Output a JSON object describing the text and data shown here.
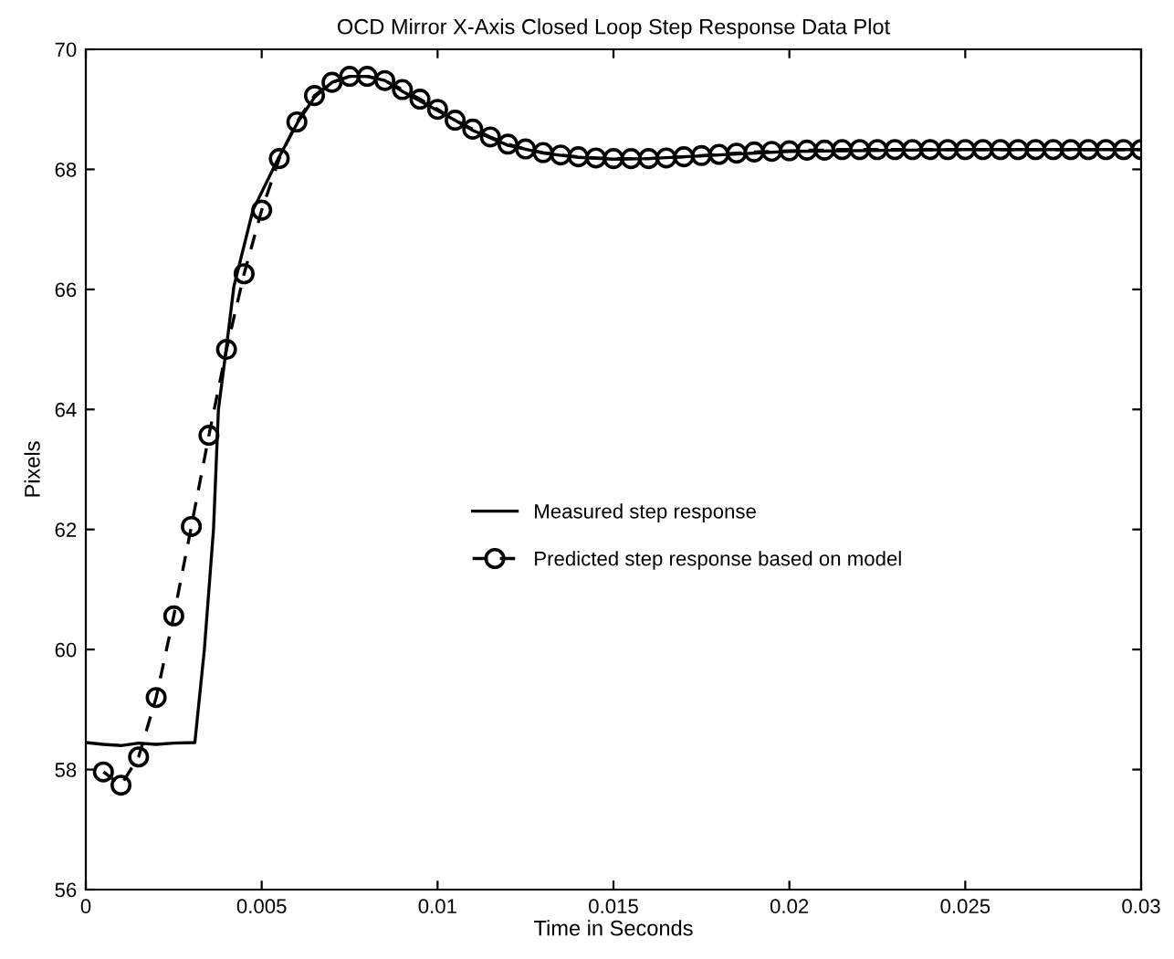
{
  "chart_data": {
    "type": "line",
    "title": "OCD Mirror X-Axis Closed Loop Step Response Data Plot",
    "xlabel": "Time in Seconds",
    "ylabel": "Pixels",
    "xlim": [
      0,
      0.03
    ],
    "ylim": [
      56,
      70
    ],
    "xticks": [
      0,
      0.005,
      0.01,
      0.015,
      0.02,
      0.025,
      0.03
    ],
    "yticks": [
      56,
      58,
      60,
      62,
      64,
      66,
      68,
      70
    ],
    "grid": false,
    "legend": "center",
    "series": [
      {
        "name": "Measured step response",
        "color": "#000000",
        "line_style": "solid",
        "marker": "none",
        "x": [
          0,
          0.0005,
          0.001,
          0.0015,
          0.002,
          0.0025,
          0.0031,
          0.00337,
          0.00363,
          0.00377,
          0.00399,
          0.00421,
          0.00475,
          0.00547,
          0.00603,
          0.0065,
          0.007,
          0.0075,
          0.008,
          0.0085,
          0.009,
          0.01,
          0.011,
          0.012,
          0.013,
          0.014,
          0.015,
          0.016,
          0.018,
          0.02,
          0.025,
          0.03
        ],
        "values": [
          58.45,
          58.42,
          58.4,
          58.44,
          58.42,
          58.44,
          58.45,
          60,
          62,
          64,
          65,
          66.05,
          67.32,
          68.18,
          68.79,
          69.2,
          69.45,
          69.55,
          69.55,
          69.48,
          69.3,
          68.98,
          68.65,
          68.4,
          68.27,
          68.2,
          68.17,
          68.18,
          68.24,
          68.3,
          68.33,
          68.33
        ]
      },
      {
        "name": "Predicted step response based on model",
        "color": "#000000",
        "line_style": "dashed",
        "marker": "circle",
        "x": [
          0.0005,
          0.001,
          0.0015,
          0.002,
          0.0025,
          0.003,
          0.0035,
          0.004,
          0.0045,
          0.005,
          0.0055,
          0.006,
          0.0065,
          0.007,
          0.0075,
          0.008,
          0.0085,
          0.009,
          0.0095,
          0.01,
          0.0105,
          0.011,
          0.0115,
          0.012,
          0.0125,
          0.013,
          0.0135,
          0.014,
          0.0145,
          0.015,
          0.0155,
          0.016,
          0.0165,
          0.017,
          0.0175,
          0.018,
          0.0185,
          0.019,
          0.0195,
          0.02,
          0.0205,
          0.021,
          0.0215,
          0.022,
          0.0225,
          0.023,
          0.0235,
          0.024,
          0.0245,
          0.025,
          0.0255,
          0.026,
          0.0265,
          0.027,
          0.0275,
          0.028,
          0.0285,
          0.029,
          0.0295,
          0.03
        ],
        "values": [
          57.96,
          57.74,
          58.21,
          59.2,
          60.56,
          62.05,
          63.57,
          65.0,
          66.26,
          67.32,
          68.18,
          68.79,
          69.23,
          69.45,
          69.55,
          69.55,
          69.48,
          69.33,
          69.17,
          69.0,
          68.82,
          68.67,
          68.54,
          68.42,
          68.34,
          68.28,
          68.24,
          68.21,
          68.19,
          68.18,
          68.18,
          68.18,
          68.19,
          68.21,
          68.23,
          68.25,
          68.27,
          68.29,
          68.3,
          68.31,
          68.32,
          68.32,
          68.33,
          68.33,
          68.33,
          68.33,
          68.33,
          68.33,
          68.33,
          68.33,
          68.33,
          68.33,
          68.33,
          68.33,
          68.33,
          68.33,
          68.33,
          68.33,
          68.33,
          68.33
        ]
      }
    ]
  }
}
